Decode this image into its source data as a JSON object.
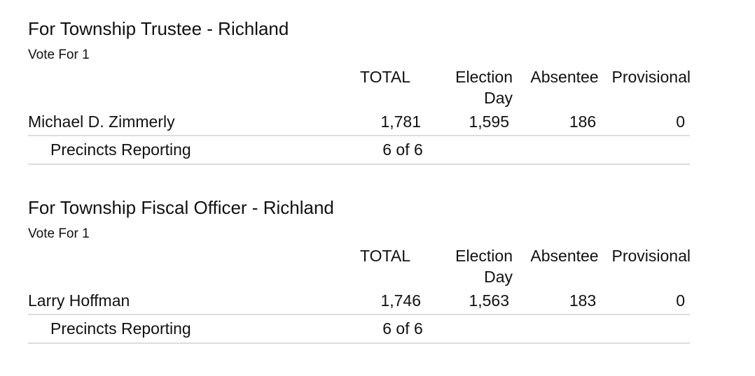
{
  "races": [
    {
      "title": "For Township Trustee - Richland",
      "vote_for": "Vote For 1",
      "headers": [
        "TOTAL",
        "Election Day",
        "Absentee",
        "Provisional"
      ],
      "candidates": [
        {
          "name": "Michael D. Zimmerly",
          "values": [
            "1,781",
            "1,595",
            "186",
            "0"
          ]
        }
      ],
      "precincts": {
        "label": "Precincts Reporting",
        "value": "6 of 6"
      }
    },
    {
      "title": "For Township Fiscal Officer - Richland",
      "vote_for": "Vote For 1",
      "headers": [
        "TOTAL",
        "Election Day",
        "Absentee",
        "Provisional"
      ],
      "candidates": [
        {
          "name": "Larry Hoffman",
          "values": [
            "1,746",
            "1,563",
            "183",
            "0"
          ]
        }
      ],
      "precincts": {
        "label": "Precincts Reporting",
        "value": "6 of 6"
      }
    }
  ]
}
